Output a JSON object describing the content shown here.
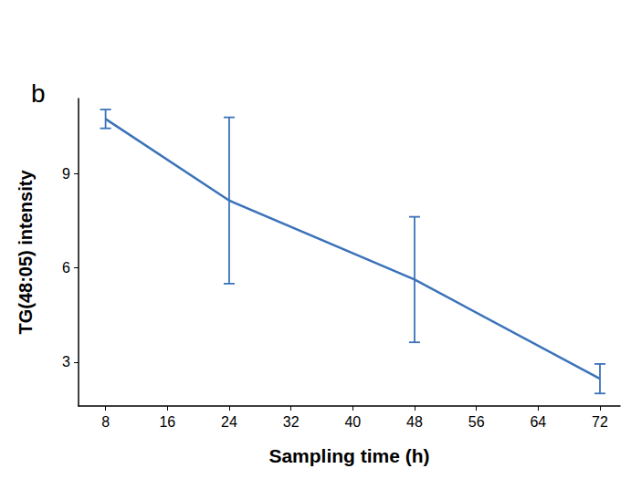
{
  "chart_data": {
    "type": "line",
    "panel_label": "b",
    "x_label": "Sampling time (h)",
    "y_label": "TG(48:05) intensity",
    "x": [
      8,
      24,
      48,
      72
    ],
    "values": [
      10.75,
      8.15,
      5.63,
      2.47
    ],
    "error": [
      0.3,
      2.65,
      2.0,
      0.47
    ],
    "color": "#3b73b9",
    "xlim": [
      4.5,
      74.6
    ],
    "xticks": [
      8,
      16,
      24,
      32,
      40,
      48,
      56,
      64,
      72
    ],
    "ylim": [
      1.6,
      11.4
    ],
    "yticks": [
      3,
      6,
      9
    ],
    "grid": false
  }
}
